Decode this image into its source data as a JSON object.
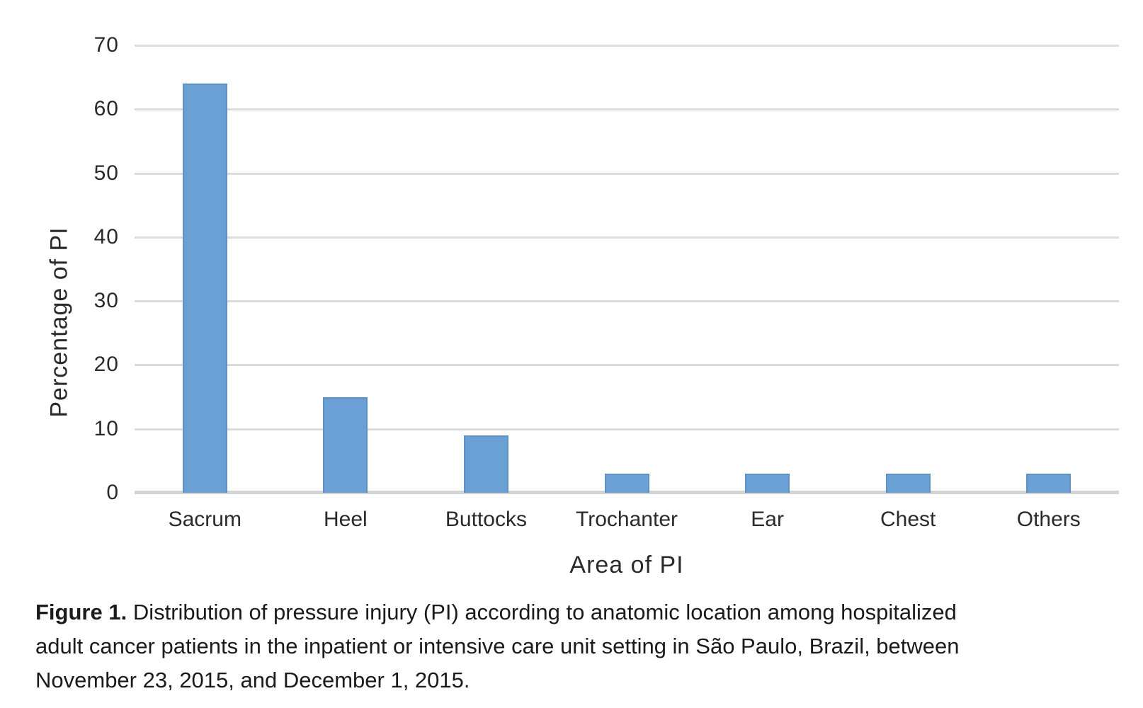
{
  "figure": {
    "caption": {
      "figure_label": "Figure 1.",
      "lines": [
        "Distribution of pressure injury (PI) according to anatomic location among hospitalized",
        "adult cancer patients in the inpatient or intensive care unit setting in São Paulo, Brazil, between",
        "November 23, 2015, and December 1, 2015."
      ]
    }
  },
  "chart_data": {
    "type": "bar",
    "categories": [
      "Sacrum",
      "Heel",
      "Buttocks",
      "Trochanter",
      "Ear",
      "Chest",
      "Others"
    ],
    "values": [
      64,
      15,
      9,
      3,
      3,
      3,
      3
    ],
    "title": "",
    "xlabel": "Area of PI",
    "ylabel": "Percentage of PI",
    "ylim": [
      0,
      70
    ],
    "yticks": [
      0,
      10,
      20,
      30,
      40,
      50,
      60,
      70
    ],
    "grid": true,
    "legend": false,
    "colors": {
      "bar_fill": "#6AA0D3",
      "bar_border": "#5E92C6",
      "gridline": "#dcdcdc",
      "axis_line": "#d4d4d4",
      "tick_label": "#2a2a2a",
      "axis_title": "#2a2a2a"
    }
  }
}
